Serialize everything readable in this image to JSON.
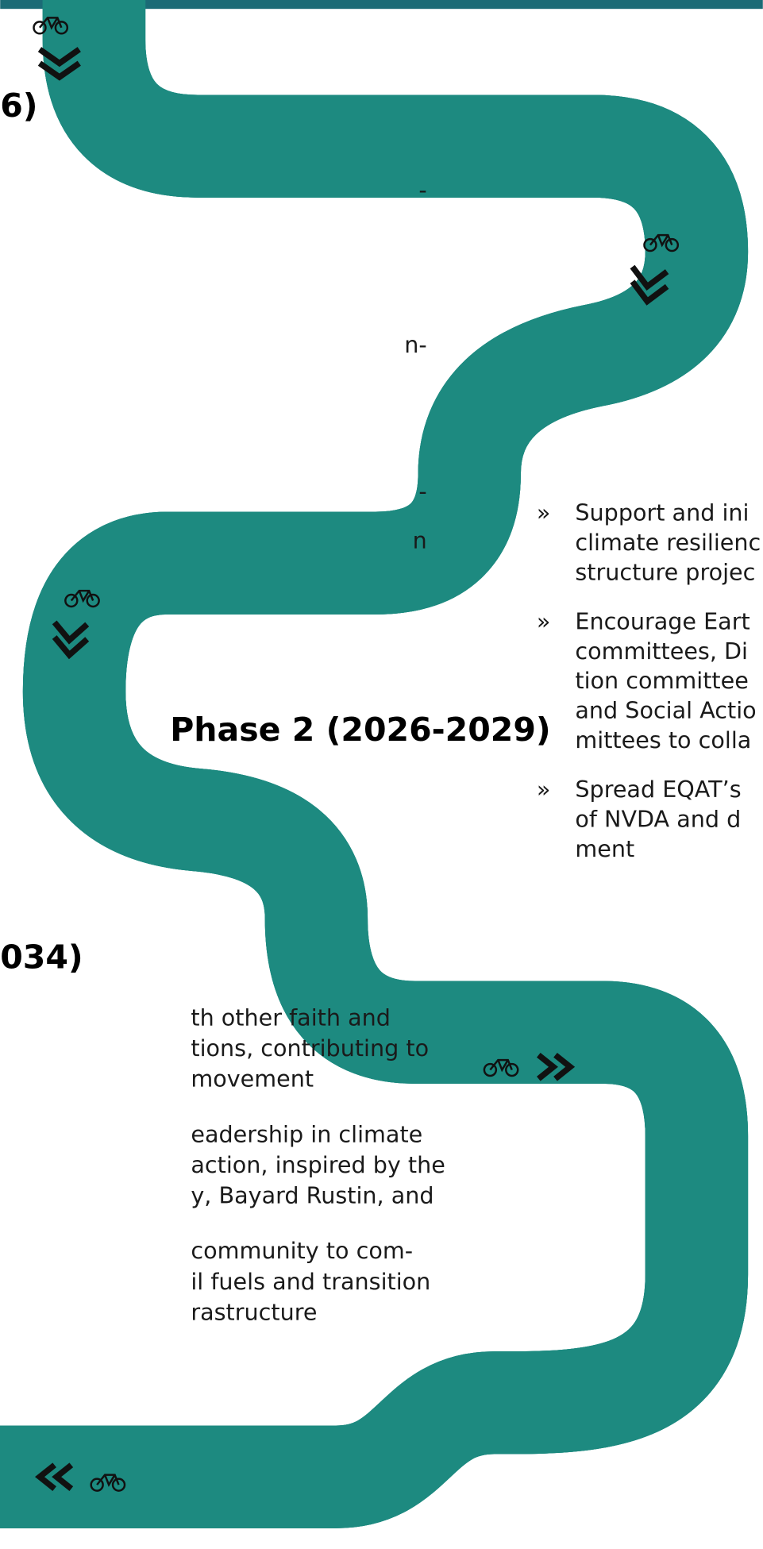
{
  "phase1": {
    "heading_fragment": "6)",
    "text_fragments": [
      "-",
      "n-",
      "-",
      "n"
    ]
  },
  "phase2": {
    "heading": "Phase 2 (2026-2029)",
    "bullets": [
      {
        "marker": "»",
        "lines": [
          "Support and ini",
          "climate resilienc",
          "structure projec"
        ]
      },
      {
        "marker": "»",
        "lines": [
          "Encourage Eart",
          "committees, Di",
          "tion committee",
          "and Social Actio",
          "mittees to colla"
        ]
      },
      {
        "marker": "»",
        "lines": [
          "Spread EQAT’s",
          "of NVDA and d",
          "ment"
        ]
      }
    ]
  },
  "phase3": {
    "heading_fragment": "034)",
    "bullets": [
      {
        "lines": [
          "th other faith and",
          "tions, contributing to",
          "movement"
        ]
      },
      {
        "lines": [
          "eadership in climate",
          "action, inspired by the",
          "y, Bayard Rustin, and"
        ]
      },
      {
        "lines": [
          "community to com-",
          "il fuels and transition",
          "rastructure"
        ]
      }
    ]
  }
}
